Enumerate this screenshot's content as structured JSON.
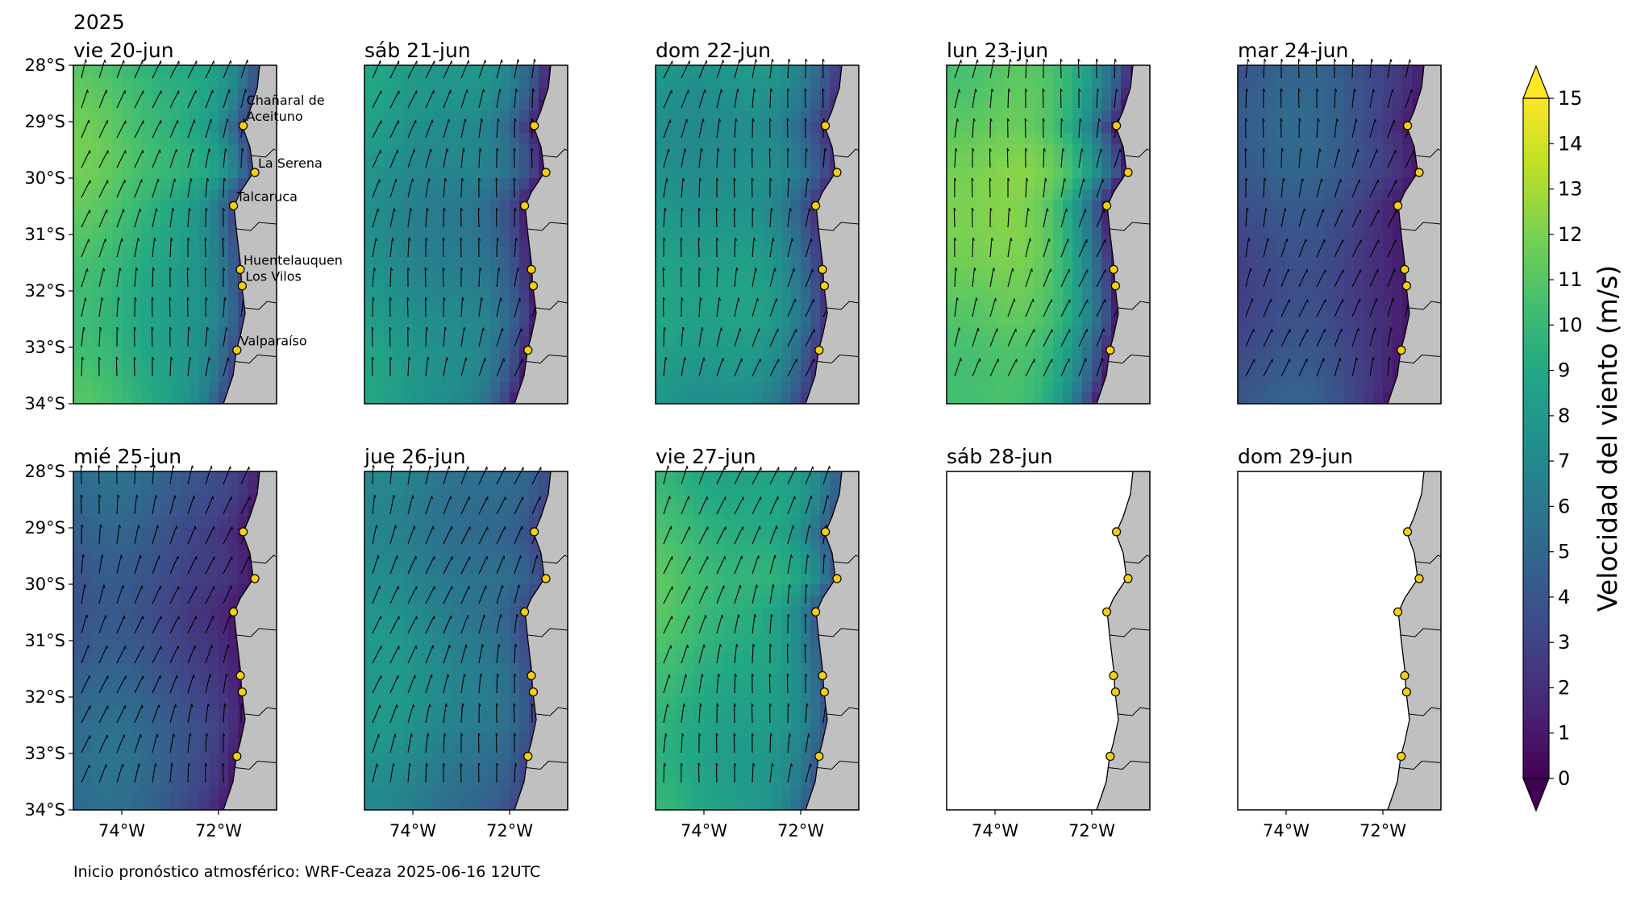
{
  "year": "2025",
  "colorbar": {
    "label": "Velocidad del viento (m/s)",
    "ticks": [
      "0",
      "1",
      "2",
      "3",
      "4",
      "5",
      "6",
      "7",
      "8",
      "9",
      "10",
      "11",
      "12",
      "13",
      "14",
      "15"
    ],
    "min": 0,
    "max": 15,
    "colormap": "viridis",
    "extend": "both"
  },
  "y_ticks": [
    "28°S",
    "29°S",
    "30°S",
    "31°S",
    "32°S",
    "33°S",
    "34°S"
  ],
  "x_ticks": [
    "74°W",
    "72°W"
  ],
  "footer": "Inicio pronóstico atmosférico: WRF-Ceaza 2025-06-16 12UTC",
  "cities": [
    {
      "label": "Chañaral de\nAceituno",
      "lat": -29.07,
      "lon": -71.49
    },
    {
      "label": "La Serena",
      "lat": -29.9,
      "lon": -71.25
    },
    {
      "label": "Talcaruca",
      "lat": -30.49,
      "lon": -71.69
    },
    {
      "label": "Huentelauquen",
      "lat": -31.62,
      "lon": -71.55
    },
    {
      "label": "Los Vilos",
      "lat": -31.91,
      "lon": -71.51
    },
    {
      "label": "Valparaíso",
      "lat": -33.05,
      "lon": -71.62
    }
  ],
  "panels": [
    {
      "title": "vie 20-jun",
      "has_data": true,
      "base_speed": 10.5,
      "speed_range": [
        3,
        12
      ]
    },
    {
      "title": "sáb 21-jun",
      "has_data": true,
      "base_speed": 8,
      "speed_range": [
        1,
        9
      ]
    },
    {
      "title": "dom 22-jun",
      "has_data": true,
      "base_speed": 8.5,
      "speed_range": [
        2,
        11
      ]
    },
    {
      "title": "lun 23-jun",
      "has_data": true,
      "base_speed": 12,
      "speed_range": [
        1,
        14
      ]
    },
    {
      "title": "mar 24-jun",
      "has_data": true,
      "base_speed": 4,
      "speed_range": [
        1,
        7
      ]
    },
    {
      "title": "mié 25-jun",
      "has_data": true,
      "base_speed": 4.5,
      "speed_range": [
        1,
        6
      ]
    },
    {
      "title": "jue 26-jun",
      "has_data": true,
      "base_speed": 7,
      "speed_range": [
        3,
        8
      ]
    },
    {
      "title": "vie 27-jun",
      "has_data": true,
      "base_speed": 10,
      "speed_range": [
        4,
        13
      ]
    },
    {
      "title": "sáb 28-jun",
      "has_data": false
    },
    {
      "title": "dom 29-jun",
      "has_data": false
    }
  ]
}
